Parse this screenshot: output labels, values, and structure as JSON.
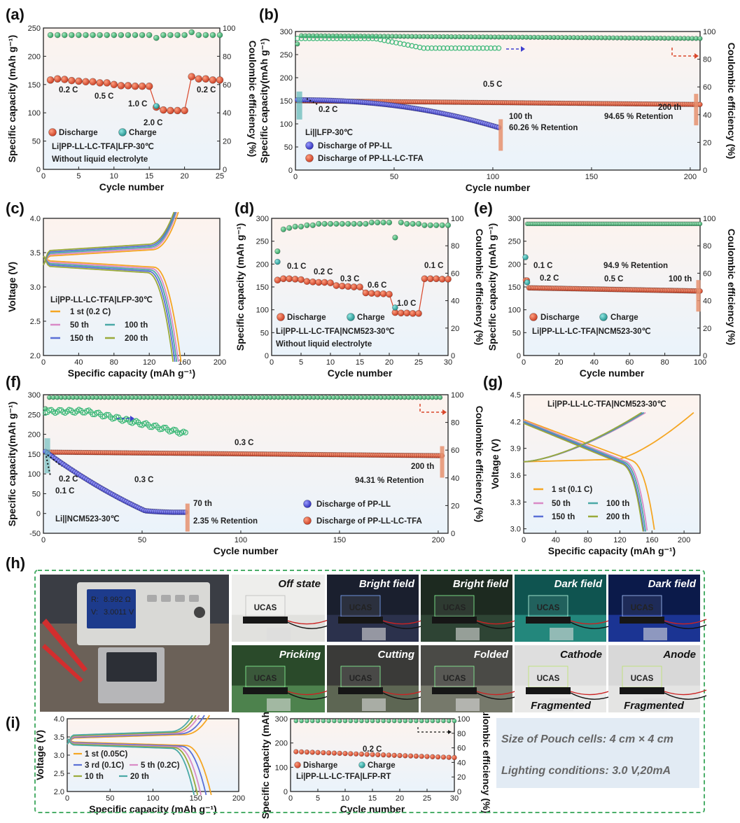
{
  "panel_labels": [
    "(a)",
    "(b)",
    "(c)",
    "(d)",
    "(e)",
    "(f)",
    "(g)",
    "(h)",
    "(i)"
  ],
  "colors": {
    "discharge_red": "#d9472b",
    "charge_teal": "#2aa7a3",
    "ce_green": "#3cb878",
    "pp_ll_blue": "#3f3fcf",
    "orange_1st": "#f5a623",
    "pink_50": "#d98ac6",
    "teal_100": "#4aa9a6",
    "blue_150": "#5a6fd6",
    "olive_200": "#9aaa3a",
    "marker_orange": "#e6906f",
    "frame_green": "#4cae6a"
  },
  "chart_data": [
    {
      "panel": "(a)",
      "type": "scatter",
      "xlabel": "Cycle number",
      "ylabel": "Specific capacity (mAh g⁻¹)",
      "y2label": "Coulombic efficiency (%)",
      "xlim": [
        0,
        25
      ],
      "ylim": [
        0,
        250
      ],
      "y2lim": [
        0,
        100
      ],
      "xticks": [
        0,
        5,
        10,
        15,
        20,
        25
      ],
      "yticks": [
        0,
        50,
        100,
        150,
        200,
        250
      ],
      "y2ticks": [
        0,
        20,
        40,
        60,
        80,
        100
      ],
      "series": [
        {
          "name": "Discharge",
          "axis": "left",
          "x": [
            1,
            2,
            3,
            4,
            5,
            6,
            7,
            8,
            9,
            10,
            11,
            12,
            13,
            14,
            15,
            16,
            17,
            18,
            19,
            20,
            21,
            22,
            23,
            24,
            25
          ],
          "y": [
            158,
            160,
            159,
            157,
            156,
            155,
            155,
            153,
            153,
            150,
            148,
            148,
            147,
            147,
            147,
            110,
            105,
            104,
            104,
            104,
            164,
            160,
            160,
            158,
            158
          ]
        },
        {
          "name": "Charge",
          "axis": "left",
          "x": [
            16
          ],
          "y": [
            112
          ]
        },
        {
          "name": "CE",
          "axis": "right",
          "x": [
            1,
            2,
            3,
            4,
            5,
            6,
            7,
            8,
            9,
            10,
            11,
            12,
            13,
            14,
            15,
            16,
            17,
            18,
            19,
            20,
            21,
            22,
            23,
            24,
            25
          ],
          "y": [
            95,
            95,
            95,
            95,
            95,
            95,
            95,
            95,
            95,
            95,
            95,
            95,
            95,
            95,
            95,
            93,
            95,
            95,
            95,
            95,
            97,
            95,
            95,
            95,
            95
          ]
        }
      ],
      "annotations": [
        "0.2 C",
        "0.5 C",
        "1.0 C",
        "2.0 C",
        "0.2 C"
      ],
      "legend": [
        "Discharge",
        "Charge"
      ],
      "notes": [
        "Li|PP-LL-LC-TFA|LFP-30℃",
        "Without liquid electrolyte"
      ]
    },
    {
      "panel": "(b)",
      "type": "scatter",
      "xlabel": "Cycle number",
      "ylabel": "Specific capacity(mAh g⁻¹)",
      "y2label": "Coulombic efficiency (%)",
      "xlim": [
        0,
        205
      ],
      "ylim": [
        0,
        300
      ],
      "y2lim": [
        0,
        100
      ],
      "xticks": [
        0,
        50,
        100,
        150,
        200
      ],
      "yticks": [
        0,
        50,
        100,
        150,
        200,
        250,
        300
      ],
      "y2ticks": [
        0,
        20,
        40,
        60,
        80,
        100
      ],
      "series": [
        {
          "name": "Discharge of PP-LL",
          "start": 152,
          "end": 92,
          "cycles": 103
        },
        {
          "name": "Discharge of PP-LL-LC-TFA",
          "start": 150,
          "end": 142,
          "cycles": 205
        },
        {
          "name": "CE PP-LL",
          "ce_start": 95,
          "ce_mid": 88,
          "cycles": 103
        },
        {
          "name": "CE PP-LL-LC-TFA",
          "ce_level": 97,
          "cycles": 205
        }
      ],
      "annotations": [
        "0.5 C",
        "0.2 C",
        "100 th",
        "60.26 %  Retention",
        "200 th",
        "94.65 %  Retention"
      ],
      "legend": [
        "Discharge of PP-LL",
        "Discharge of PP-LL-LC-TFA"
      ],
      "notes": [
        "Li||LFP-30℃"
      ]
    },
    {
      "panel": "(c)",
      "type": "line",
      "xlabel": "Specific capacity (mAh g⁻¹)",
      "ylabel": "Voltage (V)",
      "xlim": [
        0,
        200
      ],
      "ylim": [
        2.0,
        4.0
      ],
      "xticks": [
        0,
        40,
        80,
        120,
        160,
        200
      ],
      "yticks": [
        2.0,
        2.5,
        3.0,
        3.5,
        4.0
      ],
      "series": [
        {
          "name": "1 st (0.2 C)",
          "capacity": 156
        },
        {
          "name": "50 th",
          "capacity": 153
        },
        {
          "name": "100 th",
          "capacity": 151
        },
        {
          "name": "150 th",
          "capacity": 149
        },
        {
          "name": "200 th",
          "capacity": 147
        }
      ],
      "notes": [
        "Li|PP-LL-LC-TFA|LFP-30℃"
      ]
    },
    {
      "panel": "(d)",
      "type": "scatter",
      "xlabel": "Cycle number",
      "ylabel": "Specific capacity (mAh g⁻¹)",
      "y2label": "Coulombic efficiency (%)",
      "xlim": [
        0,
        30
      ],
      "ylim": [
        0,
        300
      ],
      "y2lim": [
        0,
        100
      ],
      "xticks": [
        0,
        5,
        10,
        15,
        20,
        25,
        30
      ],
      "yticks": [
        0,
        50,
        100,
        150,
        200,
        250,
        300
      ],
      "y2ticks": [
        0,
        20,
        40,
        60,
        80,
        100
      ],
      "series": [
        {
          "name": "Discharge",
          "axis": "left",
          "x": [
            1,
            2,
            3,
            4,
            5,
            6,
            7,
            8,
            9,
            10,
            11,
            12,
            13,
            14,
            15,
            16,
            17,
            18,
            19,
            20,
            21,
            22,
            23,
            24,
            25,
            26,
            27,
            28,
            29,
            30
          ],
          "y": [
            165,
            168,
            168,
            167,
            166,
            162,
            161,
            160,
            160,
            159,
            153,
            152,
            151,
            150,
            150,
            137,
            136,
            135,
            135,
            134,
            94,
            93,
            93,
            92,
            92,
            168,
            168,
            168,
            167,
            167
          ]
        },
        {
          "name": "Charge",
          "axis": "left",
          "x": [
            1,
            21
          ],
          "y": [
            205,
            105
          ]
        },
        {
          "name": "CE",
          "axis": "right",
          "x": [
            1,
            2,
            3,
            4,
            5,
            6,
            7,
            8,
            9,
            10,
            11,
            12,
            13,
            14,
            15,
            16,
            17,
            18,
            19,
            20,
            21,
            22,
            23,
            24,
            25,
            26,
            27,
            28,
            29,
            30
          ],
          "y": [
            76,
            92,
            93,
            94,
            94,
            95,
            95,
            96,
            96,
            96,
            96,
            96,
            96,
            96,
            96,
            96,
            97,
            97,
            97,
            97,
            86,
            97,
            96,
            96,
            96,
            95,
            95,
            95,
            95,
            95
          ]
        }
      ],
      "annotations": [
        "0.1 C",
        "0.2 C",
        "0.3 C",
        "0.6 C",
        "1.0 C",
        "0.1 C"
      ],
      "legend": [
        "Discharge",
        "Charge"
      ],
      "notes": [
        "Li|PP-LL-LC-TFA|NCM523-30℃",
        "Without liquid electrolyte"
      ]
    },
    {
      "panel": "(e)",
      "type": "scatter",
      "xlabel": "Cycle number",
      "ylabel": "Specific capacity (mAh g⁻¹)",
      "y2label": "Coulombic efficiency (%)",
      "xlim": [
        0,
        100
      ],
      "ylim": [
        0,
        300
      ],
      "y2lim": [
        0,
        100
      ],
      "xticks": [
        0,
        20,
        40,
        60,
        80,
        100
      ],
      "yticks": [
        0,
        50,
        100,
        150,
        200,
        250,
        300
      ],
      "y2ticks": [
        0,
        20,
        40,
        60,
        80,
        100
      ],
      "series": [
        {
          "name": "Discharge",
          "start": 165,
          "plateau": 148,
          "end": 141,
          "cycles": 100
        },
        {
          "name": "Charge",
          "x": [
            1,
            2
          ],
          "y": [
            215,
            160
          ]
        },
        {
          "name": "CE",
          "ce_first": 72,
          "ce_level": 96,
          "cycles": 100
        }
      ],
      "annotations": [
        "0.1 C",
        "0.2 C",
        "0.5 C",
        "94.9 %  Retention",
        "100 th"
      ],
      "legend": [
        "Discharge",
        "Charge"
      ],
      "notes": [
        "Li|PP-LL-LC-TFA|NCM523-30℃"
      ]
    },
    {
      "panel": "(f)",
      "type": "scatter",
      "xlabel": "Cycle number",
      "ylabel": "Specific capacity(mAh g⁻¹)",
      "y2label": "Coulombic efficiency (%)",
      "xlim": [
        0,
        205
      ],
      "ylim": [
        -50,
        300
      ],
      "y2lim": [
        0,
        100
      ],
      "xticks": [
        0,
        50,
        100,
        150,
        200
      ],
      "yticks": [
        -50,
        0,
        50,
        100,
        150,
        200,
        250,
        300
      ],
      "y2ticks": [
        0,
        20,
        40,
        60,
        80,
        100
      ],
      "series": [
        {
          "name": "Discharge of PP-LL",
          "start": 160,
          "end": 3,
          "cycles": 72
        },
        {
          "name": "Discharge of PP-LL-LC-TFA",
          "start": 155,
          "end": 146,
          "cycles": 202
        },
        {
          "name": "CE PP-LL",
          "ce_start": 88,
          "ce_end": 72,
          "cycles": 72
        },
        {
          "name": "CE PP-LL-LC-TFA",
          "ce_level": 98,
          "cycles": 202
        }
      ],
      "annotations": [
        "0.3 C",
        "0.2 C",
        "0.1 C",
        "0.3 C",
        "200 th",
        "94.31 %  Retention",
        "70 th",
        "2.35 %  Retention"
      ],
      "legend": [
        "Discharge of PP-LL",
        "Discharge of PP-LL-LC-TFA"
      ],
      "notes": [
        "Li||NCM523-30℃"
      ]
    },
    {
      "panel": "(g)",
      "type": "line",
      "xlabel": "Specific capacity (mAh g⁻¹)",
      "ylabel": "Voltage (V)",
      "xlim": [
        0,
        220
      ],
      "ylim": [
        2.95,
        4.5
      ],
      "xticks": [
        0,
        40,
        80,
        120,
        160,
        200
      ],
      "yticks": [
        3.0,
        3.3,
        3.6,
        3.9,
        4.2,
        4.5
      ],
      "series": [
        {
          "name": "1 st (0.1 C)",
          "capacity": 163
        },
        {
          "name": "50 th",
          "capacity": 154
        },
        {
          "name": "100 th",
          "capacity": 152
        },
        {
          "name": "150 th",
          "capacity": 150
        },
        {
          "name": "200 th",
          "capacity": 149
        }
      ],
      "notes": [
        "Li|PP-LL-LC-TFA|NCM523-30℃"
      ]
    },
    {
      "panel": "(i)-left",
      "type": "line",
      "xlabel": "Specific capacity (mAh g⁻¹)",
      "ylabel": "Voltage (V)",
      "xlim": [
        0,
        200
      ],
      "ylim": [
        2.0,
        4.0
      ],
      "xticks": [
        0,
        50,
        100,
        150,
        200
      ],
      "yticks": [
        2.0,
        2.5,
        3.0,
        3.5,
        4.0
      ],
      "series": [
        {
          "name": "1 st (0.05C)",
          "capacity": 168
        },
        {
          "name": "3 rd (0.1C)",
          "capacity": 162
        },
        {
          "name": "5 th (0.2C)",
          "capacity": 156
        },
        {
          "name": "10 th",
          "capacity": 152
        },
        {
          "name": "20 th",
          "capacity": 148
        }
      ]
    },
    {
      "panel": "(i)-mid",
      "type": "scatter",
      "xlabel": "Cycle number",
      "ylabel": "Specific capacity (mAh g⁻¹)",
      "y2label": "Coulombic efficiency (%)",
      "xlim": [
        0,
        30
      ],
      "ylim": [
        0,
        300
      ],
      "y2lim": [
        0,
        100
      ],
      "xticks": [
        0,
        5,
        10,
        15,
        20,
        25,
        30
      ],
      "yticks": [
        0,
        100,
        200,
        300
      ],
      "y2ticks": [
        0,
        20,
        40,
        60,
        80,
        100
      ],
      "series": [
        {
          "name": "Disharge",
          "start": 165,
          "end": 140,
          "cycles": 30
        },
        {
          "name": "CE",
          "ce_level": 97,
          "cycles": 30
        }
      ],
      "annotations": [
        "0.2 C"
      ],
      "legend": [
        "Disharge",
        "Charge"
      ],
      "notes": [
        "Li|PP-LL-LC-TFA|LFP-RT"
      ]
    }
  ],
  "photos": {
    "labels": [
      "Off state",
      "Bright field",
      "Bright field",
      "Dark field",
      "Dark field",
      "Pricking",
      "Cutting",
      "Folded",
      "Cathode",
      "Anode",
      "Fragmented",
      "Fragmented"
    ],
    "sign_text": "UCAS",
    "meter_text": [
      "R:",
      "8.992 Ω",
      "V:",
      "3.0011 V"
    ]
  },
  "info": {
    "line1": "Size of Pouch cells: 4 cm  × 4 cm",
    "line2": "Lighting conditions: 3.0 V,20mA"
  }
}
